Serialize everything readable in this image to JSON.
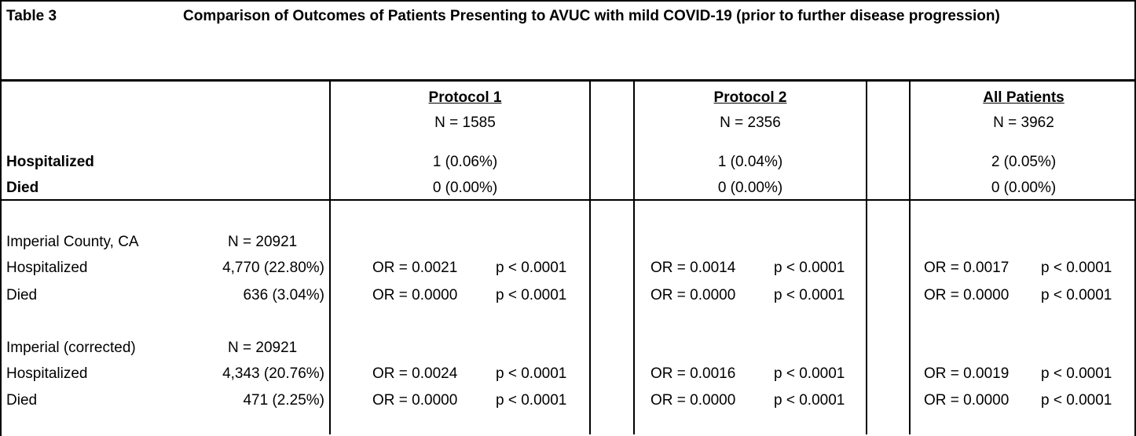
{
  "table": {
    "label": "Table 3",
    "caption": "Comparison of Outcomes of Patients Presenting to AVUC with mild COVID-19 (prior to further disease progression)"
  },
  "groups": [
    {
      "name": "Protocol 1",
      "n": "N = 1585",
      "hospitalized": "1 (0.06%)",
      "died": "0 (0.00%)",
      "imperial": {
        "hosp_or": "OR = 0.0021",
        "hosp_p": "p < 0.0001",
        "died_or": "OR = 0.0000",
        "died_p": "p < 0.0001"
      },
      "corrected": {
        "hosp_or": "OR = 0.0024",
        "hosp_p": "p < 0.0001",
        "died_or": "OR = 0.0000",
        "died_p": "p < 0.0001"
      }
    },
    {
      "name": "Protocol 2",
      "n": "N = 2356",
      "hospitalized": "1 (0.04%)",
      "died": "0 (0.00%)",
      "imperial": {
        "hosp_or": "OR = 0.0014",
        "hosp_p": "p < 0.0001",
        "died_or": "OR = 0.0000",
        "died_p": "p < 0.0001"
      },
      "corrected": {
        "hosp_or": "OR = 0.0016",
        "hosp_p": "p < 0.0001",
        "died_or": "OR = 0.0000",
        "died_p": "p < 0.0001"
      }
    },
    {
      "name": "All Patients",
      "n": "N = 3962",
      "hospitalized": "2 (0.05%)",
      "died": "0 (0.00%)",
      "imperial": {
        "hosp_or": "OR = 0.0017",
        "hosp_p": "p < 0.0001",
        "died_or": "OR = 0.0000",
        "died_p": "p < 0.0001"
      },
      "corrected": {
        "hosp_or": "OR = 0.0019",
        "hosp_p": "p < 0.0001",
        "died_or": "OR = 0.0000",
        "died_p": "p < 0.0001"
      }
    }
  ],
  "rows": {
    "hospitalized": "Hospitalized",
    "died": "Died"
  },
  "comparisons": {
    "imperial": {
      "label": "Imperial County, CA",
      "n": "N = 20921",
      "hospitalized_label": "Hospitalized",
      "hospitalized": "4,770 (22.80%)",
      "died_label": "Died",
      "died": "636 (3.04%)"
    },
    "corrected": {
      "label": "Imperial (corrected)",
      "n": "N = 20921",
      "hospitalized_label": "Hospitalized",
      "hospitalized": "4,343 (20.76%)",
      "died_label": "Died",
      "died": "471 (2.25%)"
    }
  }
}
